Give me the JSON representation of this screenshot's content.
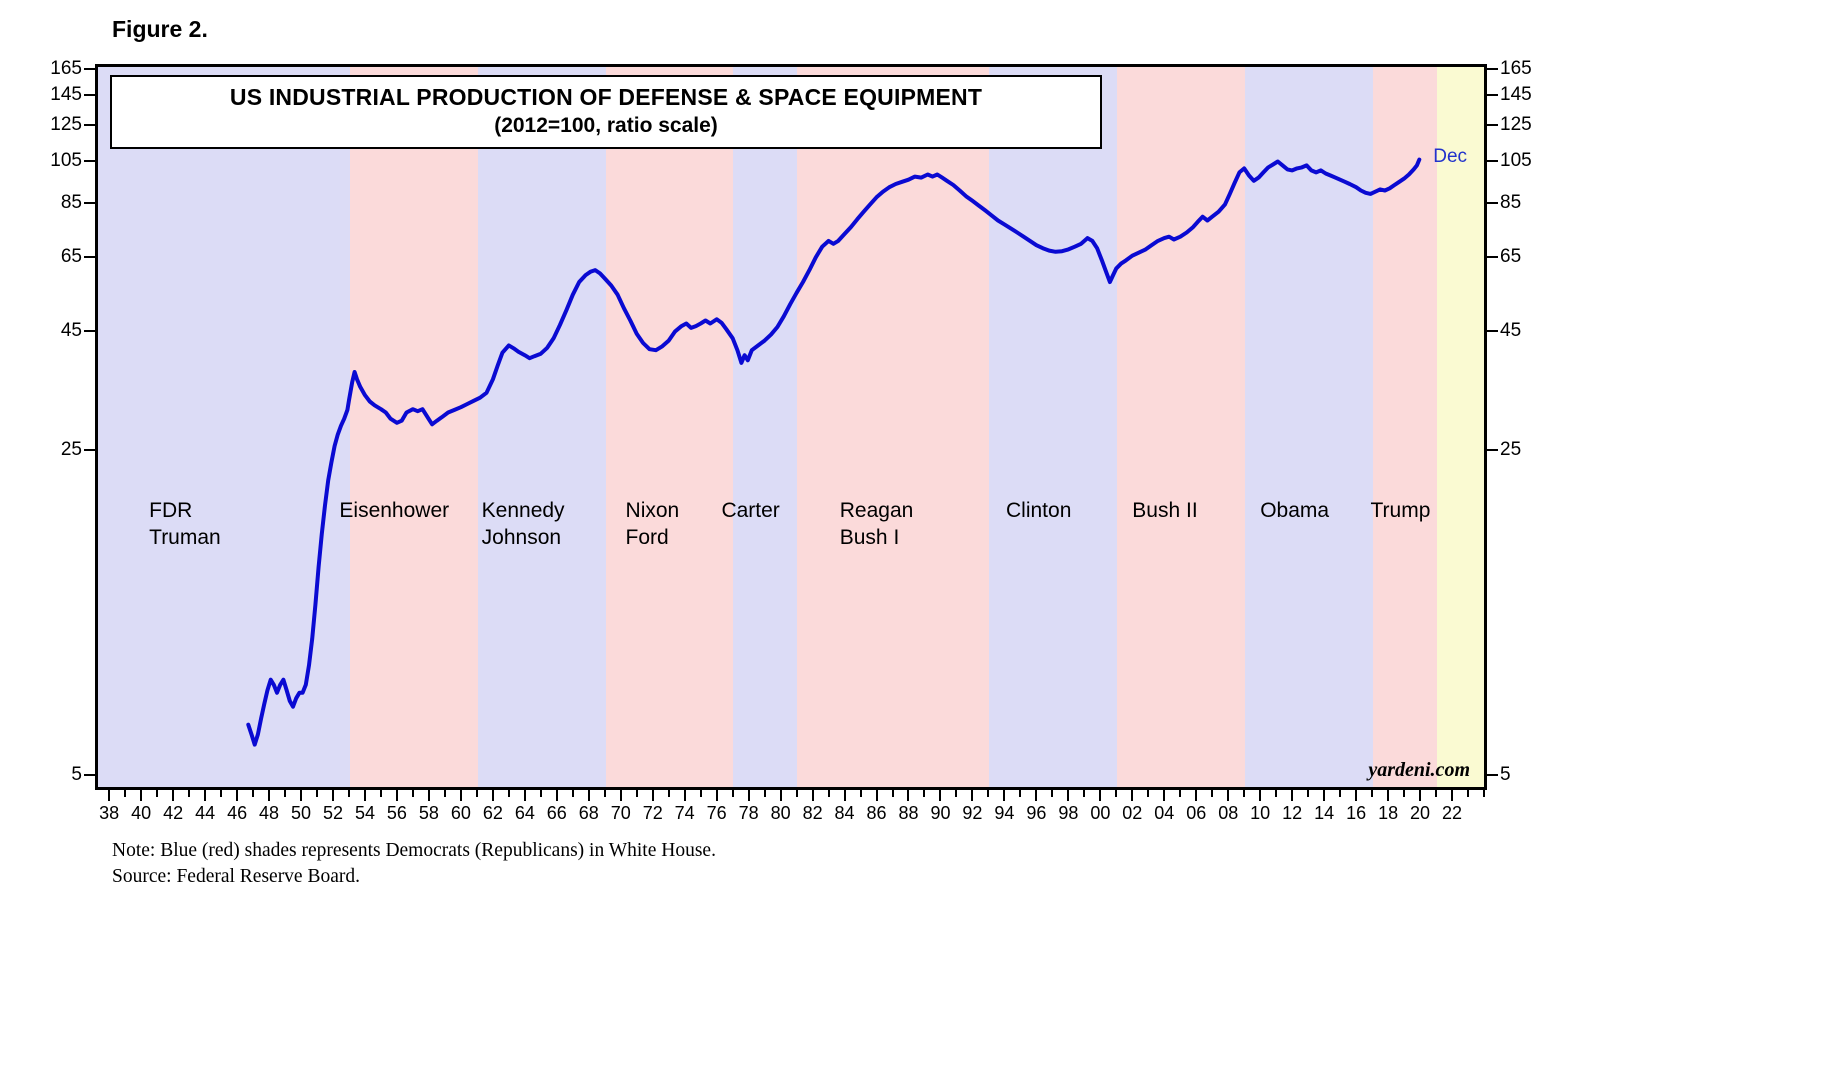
{
  "figure_label": "Figure 2.",
  "title_line1": "US INDUSTRIAL PRODUCTION OF DEFENSE & SPACE EQUIPMENT",
  "title_line2": "(2012=100, ratio scale)",
  "last_point_label": "Dec",
  "watermark": "yardeni.com",
  "note_line1": "Note: Blue (red) shades represents Democrats (Republicans) in White House.",
  "note_line2": "Source: Federal Reserve Board.",
  "colors": {
    "line": "#0a0ad2",
    "last_point_label": "#2233cc",
    "dem_band": "#dcdcf6",
    "rep_band": "#fbdada",
    "future_band": "#fafad2",
    "axis": "#000000"
  },
  "chart_data": {
    "type": "line",
    "scale": "log",
    "title": "US INDUSTRIAL PRODUCTION OF DEFENSE & SPACE EQUIPMENT",
    "subtitle": "(2012=100, ratio scale)",
    "x_domain": [
      1937.3,
      2024.0
    ],
    "y_domain": [
      4.7,
      167
    ],
    "y_ticks": [
      5,
      25,
      45,
      65,
      85,
      105,
      125,
      145,
      165
    ],
    "x_minor_step": 1,
    "x_ticks": [
      1938,
      1940,
      1942,
      1944,
      1946,
      1948,
      1950,
      1952,
      1954,
      1956,
      1958,
      1960,
      1962,
      1964,
      1966,
      1968,
      1970,
      1972,
      1974,
      1976,
      1978,
      1980,
      1982,
      1984,
      1986,
      1988,
      1990,
      1992,
      1994,
      1996,
      1998,
      2000,
      2002,
      2004,
      2006,
      2008,
      2010,
      2012,
      2014,
      2016,
      2018,
      2020,
      2022
    ],
    "x_tick_labels": [
      "38",
      "40",
      "42",
      "44",
      "46",
      "48",
      "50",
      "52",
      "54",
      "56",
      "58",
      "60",
      "62",
      "64",
      "66",
      "68",
      "70",
      "72",
      "74",
      "76",
      "78",
      "80",
      "82",
      "84",
      "86",
      "88",
      "90",
      "92",
      "94",
      "96",
      "98",
      "00",
      "02",
      "04",
      "06",
      "08",
      "10",
      "12",
      "14",
      "16",
      "18",
      "20",
      "22"
    ],
    "bands": [
      {
        "label_lines": [
          "FDR",
          "Truman"
        ],
        "start": 1937.3,
        "end": 1953.05,
        "party": "dem",
        "label_x": 1940.5
      },
      {
        "label_lines": [
          "Eisenhower"
        ],
        "start": 1953.05,
        "end": 1961.05,
        "party": "rep",
        "label_x": 1952.4
      },
      {
        "label_lines": [
          "Kennedy",
          "Johnson"
        ],
        "start": 1961.05,
        "end": 1969.05,
        "party": "dem",
        "label_x": 1961.3
      },
      {
        "label_lines": [
          "Nixon",
          "Ford"
        ],
        "start": 1969.05,
        "end": 1977.05,
        "party": "rep",
        "label_x": 1970.3
      },
      {
        "label_lines": [
          "Carter"
        ],
        "start": 1977.05,
        "end": 1981.05,
        "party": "dem",
        "label_x": 1976.3
      },
      {
        "label_lines": [
          "Reagan",
          "Bush I"
        ],
        "start": 1981.05,
        "end": 1993.05,
        "party": "rep",
        "label_x": 1983.7
      },
      {
        "label_lines": [
          "Clinton"
        ],
        "start": 1993.05,
        "end": 2001.05,
        "party": "dem",
        "label_x": 1994.1
      },
      {
        "label_lines": [
          "Bush II"
        ],
        "start": 2001.05,
        "end": 2009.05,
        "party": "rep",
        "label_x": 2002.0
      },
      {
        "label_lines": [
          "Obama"
        ],
        "start": 2009.05,
        "end": 2017.05,
        "party": "dem",
        "label_x": 2010.0
      },
      {
        "label_lines": [
          "Trump"
        ],
        "start": 2017.05,
        "end": 2021.05,
        "party": "rep",
        "label_x": 2016.9
      },
      {
        "label_lines": [],
        "start": 2021.05,
        "end": 2024.0,
        "party": "future",
        "label_x": null
      }
    ],
    "series": [
      {
        "name": "US Industrial Production of Defense & Space Equipment (2012=100)",
        "last_point_label": "Dec",
        "points": [
          [
            1946.7,
            6.4
          ],
          [
            1946.9,
            6.1
          ],
          [
            1947.1,
            5.8
          ],
          [
            1947.3,
            6.1
          ],
          [
            1947.5,
            6.6
          ],
          [
            1947.7,
            7.1
          ],
          [
            1947.9,
            7.6
          ],
          [
            1948.1,
            8.0
          ],
          [
            1948.3,
            7.8
          ],
          [
            1948.5,
            7.5
          ],
          [
            1948.7,
            7.8
          ],
          [
            1948.9,
            8.0
          ],
          [
            1949.1,
            7.6
          ],
          [
            1949.3,
            7.2
          ],
          [
            1949.5,
            7.0
          ],
          [
            1949.7,
            7.3
          ],
          [
            1949.9,
            7.5
          ],
          [
            1950.1,
            7.5
          ],
          [
            1950.3,
            7.8
          ],
          [
            1950.5,
            8.6
          ],
          [
            1950.7,
            9.8
          ],
          [
            1950.9,
            11.6
          ],
          [
            1951.1,
            14.0
          ],
          [
            1951.3,
            16.5
          ],
          [
            1951.5,
            19.0
          ],
          [
            1951.7,
            21.5
          ],
          [
            1951.9,
            23.5
          ],
          [
            1952.1,
            25.5
          ],
          [
            1952.3,
            27.0
          ],
          [
            1952.5,
            28.2
          ],
          [
            1952.7,
            29.2
          ],
          [
            1952.9,
            30.5
          ],
          [
            1953.0,
            32.0
          ],
          [
            1953.2,
            35.0
          ],
          [
            1953.35,
            36.8
          ],
          [
            1953.5,
            35.5
          ],
          [
            1953.7,
            34.2
          ],
          [
            1954.0,
            32.8
          ],
          [
            1954.3,
            31.8
          ],
          [
            1954.6,
            31.2
          ],
          [
            1955.0,
            30.6
          ],
          [
            1955.3,
            30.1
          ],
          [
            1955.6,
            29.2
          ],
          [
            1956.0,
            28.6
          ],
          [
            1956.3,
            28.9
          ],
          [
            1956.6,
            30.1
          ],
          [
            1957.0,
            30.6
          ],
          [
            1957.3,
            30.3
          ],
          [
            1957.6,
            30.6
          ],
          [
            1958.0,
            29.1
          ],
          [
            1958.2,
            28.4
          ],
          [
            1958.5,
            28.9
          ],
          [
            1958.8,
            29.4
          ],
          [
            1959.2,
            30.1
          ],
          [
            1959.6,
            30.5
          ],
          [
            1960.0,
            30.9
          ],
          [
            1960.4,
            31.4
          ],
          [
            1960.8,
            31.9
          ],
          [
            1961.2,
            32.4
          ],
          [
            1961.6,
            33.2
          ],
          [
            1962.0,
            35.5
          ],
          [
            1962.3,
            38.0
          ],
          [
            1962.6,
            40.5
          ],
          [
            1963.0,
            42.0
          ],
          [
            1963.3,
            41.4
          ],
          [
            1963.6,
            40.7
          ],
          [
            1964.0,
            40.0
          ],
          [
            1964.3,
            39.4
          ],
          [
            1964.6,
            39.8
          ],
          [
            1965.0,
            40.3
          ],
          [
            1965.4,
            41.5
          ],
          [
            1965.8,
            43.5
          ],
          [
            1966.2,
            46.5
          ],
          [
            1966.6,
            50.0
          ],
          [
            1967.0,
            54.0
          ],
          [
            1967.4,
            57.5
          ],
          [
            1967.8,
            59.5
          ],
          [
            1968.1,
            60.5
          ],
          [
            1968.4,
            61.0
          ],
          [
            1968.7,
            60.0
          ],
          [
            1969.0,
            58.5
          ],
          [
            1969.4,
            56.5
          ],
          [
            1969.8,
            54.0
          ],
          [
            1970.2,
            50.5
          ],
          [
            1970.6,
            47.5
          ],
          [
            1971.0,
            44.5
          ],
          [
            1971.4,
            42.5
          ],
          [
            1971.8,
            41.2
          ],
          [
            1972.2,
            41.0
          ],
          [
            1972.6,
            41.8
          ],
          [
            1973.0,
            43.0
          ],
          [
            1973.4,
            45.0
          ],
          [
            1973.8,
            46.2
          ],
          [
            1974.1,
            46.8
          ],
          [
            1974.4,
            45.8
          ],
          [
            1974.7,
            46.2
          ],
          [
            1975.0,
            46.8
          ],
          [
            1975.3,
            47.5
          ],
          [
            1975.6,
            46.8
          ],
          [
            1976.0,
            47.8
          ],
          [
            1976.3,
            47.0
          ],
          [
            1976.6,
            45.5
          ],
          [
            1977.0,
            43.5
          ],
          [
            1977.3,
            41.0
          ],
          [
            1977.55,
            38.5
          ],
          [
            1977.75,
            40.0
          ],
          [
            1977.95,
            39.0
          ],
          [
            1978.2,
            41.0
          ],
          [
            1978.6,
            42.0
          ],
          [
            1979.0,
            43.0
          ],
          [
            1979.4,
            44.3
          ],
          [
            1979.8,
            46.0
          ],
          [
            1980.2,
            48.5
          ],
          [
            1980.6,
            51.5
          ],
          [
            1981.0,
            54.5
          ],
          [
            1981.4,
            57.5
          ],
          [
            1981.8,
            61.0
          ],
          [
            1982.2,
            65.0
          ],
          [
            1982.6,
            68.5
          ],
          [
            1983.0,
            70.5
          ],
          [
            1983.3,
            69.5
          ],
          [
            1983.6,
            70.5
          ],
          [
            1984.0,
            73.0
          ],
          [
            1984.4,
            75.5
          ],
          [
            1984.8,
            78.5
          ],
          [
            1985.2,
            81.5
          ],
          [
            1985.6,
            84.5
          ],
          [
            1986.0,
            87.5
          ],
          [
            1986.4,
            90.0
          ],
          [
            1986.8,
            92.0
          ],
          [
            1987.2,
            93.5
          ],
          [
            1987.6,
            94.5
          ],
          [
            1988.0,
            95.5
          ],
          [
            1988.4,
            97.0
          ],
          [
            1988.8,
            96.5
          ],
          [
            1989.2,
            98.0
          ],
          [
            1989.5,
            97.0
          ],
          [
            1989.8,
            98.0
          ],
          [
            1990.1,
            96.5
          ],
          [
            1990.4,
            95.0
          ],
          [
            1990.8,
            93.0
          ],
          [
            1991.2,
            90.5
          ],
          [
            1991.6,
            88.0
          ],
          [
            1992.0,
            86.0
          ],
          [
            1992.4,
            84.0
          ],
          [
            1992.8,
            82.0
          ],
          [
            1993.2,
            80.0
          ],
          [
            1993.6,
            78.0
          ],
          [
            1994.0,
            76.5
          ],
          [
            1994.4,
            75.0
          ],
          [
            1994.8,
            73.5
          ],
          [
            1995.2,
            72.0
          ],
          [
            1995.6,
            70.5
          ],
          [
            1996.0,
            69.0
          ],
          [
            1996.4,
            68.0
          ],
          [
            1996.8,
            67.2
          ],
          [
            1997.2,
            66.8
          ],
          [
            1997.6,
            67.0
          ],
          [
            1998.0,
            67.6
          ],
          [
            1998.4,
            68.5
          ],
          [
            1998.8,
            69.5
          ],
          [
            1999.2,
            71.5
          ],
          [
            1999.5,
            70.5
          ],
          [
            1999.8,
            68.0
          ],
          [
            2000.1,
            64.0
          ],
          [
            2000.4,
            60.0
          ],
          [
            2000.6,
            57.5
          ],
          [
            2000.8,
            59.5
          ],
          [
            2001.0,
            61.5
          ],
          [
            2001.3,
            63.0
          ],
          [
            2001.6,
            64.0
          ],
          [
            2002.0,
            65.5
          ],
          [
            2002.4,
            66.5
          ],
          [
            2002.8,
            67.5
          ],
          [
            2003.2,
            69.0
          ],
          [
            2003.6,
            70.5
          ],
          [
            2004.0,
            71.5
          ],
          [
            2004.3,
            72.0
          ],
          [
            2004.6,
            71.0
          ],
          [
            2005.0,
            72.0
          ],
          [
            2005.4,
            73.5
          ],
          [
            2005.8,
            75.5
          ],
          [
            2006.1,
            77.5
          ],
          [
            2006.4,
            79.5
          ],
          [
            2006.7,
            78.0
          ],
          [
            2007.0,
            79.5
          ],
          [
            2007.4,
            81.5
          ],
          [
            2007.8,
            84.5
          ],
          [
            2008.1,
            89.0
          ],
          [
            2008.4,
            94.0
          ],
          [
            2008.7,
            99.0
          ],
          [
            2009.0,
            101.0
          ],
          [
            2009.3,
            97.5
          ],
          [
            2009.6,
            95.0
          ],
          [
            2009.9,
            96.5
          ],
          [
            2010.2,
            99.0
          ],
          [
            2010.5,
            101.5
          ],
          [
            2010.8,
            103.0
          ],
          [
            2011.1,
            104.5
          ],
          [
            2011.4,
            102.5
          ],
          [
            2011.7,
            100.5
          ],
          [
            2012.0,
            100.0
          ],
          [
            2012.3,
            101.0
          ],
          [
            2012.6,
            101.5
          ],
          [
            2012.9,
            102.5
          ],
          [
            2013.2,
            100.0
          ],
          [
            2013.5,
            99.0
          ],
          [
            2013.8,
            100.0
          ],
          [
            2014.1,
            98.5
          ],
          [
            2014.4,
            97.5
          ],
          [
            2014.7,
            96.5
          ],
          [
            2015.0,
            95.5
          ],
          [
            2015.3,
            94.5
          ],
          [
            2015.6,
            93.5
          ],
          [
            2016.0,
            92.0
          ],
          [
            2016.3,
            90.5
          ],
          [
            2016.6,
            89.5
          ],
          [
            2016.9,
            89.0
          ],
          [
            2017.2,
            90.0
          ],
          [
            2017.5,
            91.0
          ],
          [
            2017.8,
            90.5
          ],
          [
            2018.1,
            91.5
          ],
          [
            2018.4,
            93.0
          ],
          [
            2018.7,
            94.5
          ],
          [
            2019.0,
            96.0
          ],
          [
            2019.3,
            98.0
          ],
          [
            2019.6,
            100.5
          ],
          [
            2019.8,
            102.5
          ],
          [
            2019.95,
            105.5
          ]
        ]
      }
    ]
  }
}
